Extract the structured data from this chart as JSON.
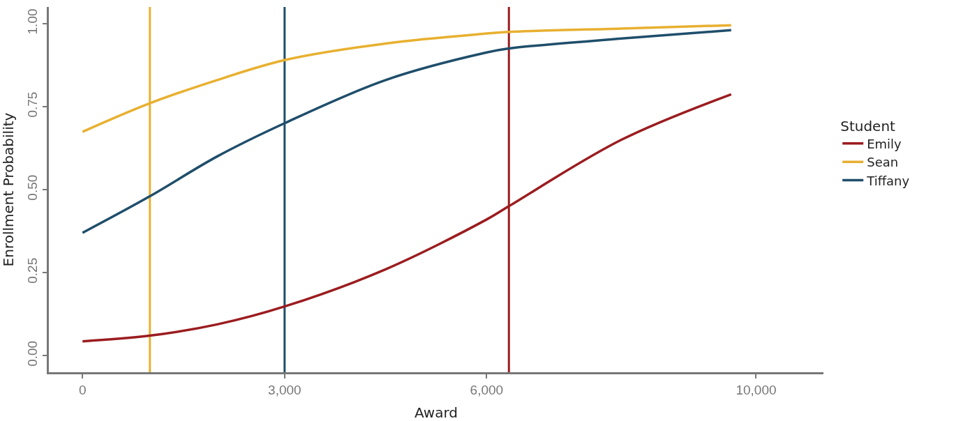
{
  "chart_data": {
    "type": "line",
    "xlabel": "Award",
    "ylabel": "Enrollment Probability",
    "legend_title": "Student",
    "x": [
      0,
      1000,
      2000,
      3000,
      4500,
      6000,
      6330,
      8000,
      9630
    ],
    "series": [
      {
        "name": "Emily",
        "color": "#9b1c1f",
        "values": [
          0.043,
          0.06,
          0.094,
          0.148,
          0.26,
          0.41,
          0.45,
          0.65,
          0.787
        ]
      },
      {
        "name": "Sean",
        "color": "#e8b030",
        "values": [
          0.674,
          0.76,
          0.83,
          0.89,
          0.94,
          0.97,
          0.975,
          0.985,
          0.995
        ]
      },
      {
        "name": "Tiffany",
        "color": "#1f4e6b",
        "values": [
          0.37,
          0.48,
          0.6,
          0.7,
          0.83,
          0.913,
          0.925,
          0.955,
          0.98
        ]
      }
    ],
    "xlim": [
      -500,
      11000
    ],
    "xticks": [
      {
        "value": 0,
        "label": "0"
      },
      {
        "value": 3000,
        "label": "3,000"
      },
      {
        "value": 6000,
        "label": "6,000"
      },
      {
        "value": 10000,
        "label": "10,000"
      }
    ],
    "ylim": [
      -0.05,
      1.05
    ],
    "yticks": [
      {
        "value": 0,
        "label": "0.00"
      },
      {
        "value": 0.25,
        "label": "0.25"
      },
      {
        "value": 0.5,
        "label": "0.50"
      },
      {
        "value": 0.75,
        "label": "0.75"
      },
      {
        "value": 1,
        "label": "1.00"
      }
    ],
    "ref_lines": [
      {
        "axis": "x",
        "value": 1000,
        "color": "#e8b030"
      },
      {
        "axis": "x",
        "value": 3000,
        "color": "#1f4e6b"
      },
      {
        "axis": "x",
        "value": 6330,
        "color": "#9b1c1f"
      }
    ],
    "grid": false,
    "legend": "right",
    "marker": "none",
    "line_style": "solid"
  }
}
